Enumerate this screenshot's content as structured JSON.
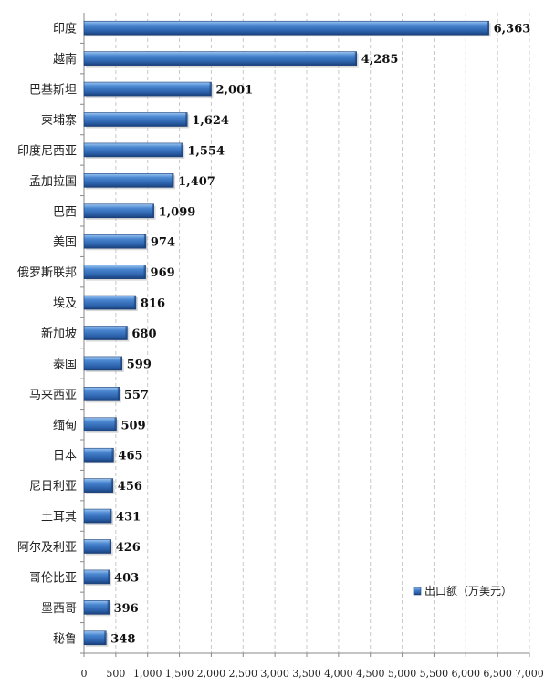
{
  "chart_data": {
    "type": "bar",
    "orientation": "horizontal",
    "categories": [
      "印度",
      "越南",
      "巴基斯坦",
      "柬埔寨",
      "印度尼西亚",
      "孟加拉国",
      "巴西",
      "美国",
      "俄罗斯联邦",
      "埃及",
      "新加坡",
      "泰国",
      "马来西亚",
      "缅甸",
      "日本",
      "尼日利亚",
      "土耳其",
      "阿尔及利亚",
      "哥伦比亚",
      "墨西哥",
      "秘鲁"
    ],
    "value_labels": [
      "6,363",
      "4,285",
      "2,001",
      "1,624",
      "1,554",
      "1,407",
      "1,099",
      "974",
      "969",
      "816",
      "680",
      "599",
      "557",
      "509",
      "465",
      "456",
      "431",
      "426",
      "403",
      "396",
      "348"
    ],
    "series": [
      {
        "name": "出口额（万美元）",
        "values": [
          6363,
          4285,
          2001,
          1624,
          1554,
          1407,
          1099,
          974,
          969,
          816,
          680,
          599,
          557,
          509,
          465,
          456,
          431,
          426,
          403,
          396,
          348
        ]
      }
    ],
    "xlim": [
      0,
      7000
    ],
    "xticks": [
      "0",
      "500",
      "1,000",
      "1,500",
      "2,000",
      "2,500",
      "3,000",
      "3,500",
      "4,000",
      "4,500",
      "5,000",
      "5,500",
      "6,000",
      "6,500",
      "7,000"
    ],
    "grid": "vertical-dashed",
    "legend_position": "bottom-right",
    "colors": {
      "bar": "#2f6ab8",
      "bar_light": "#7fb2ea",
      "bar_dark": "#1a3f78",
      "grid": "#c8c8c8",
      "axis": "#888888"
    }
  }
}
